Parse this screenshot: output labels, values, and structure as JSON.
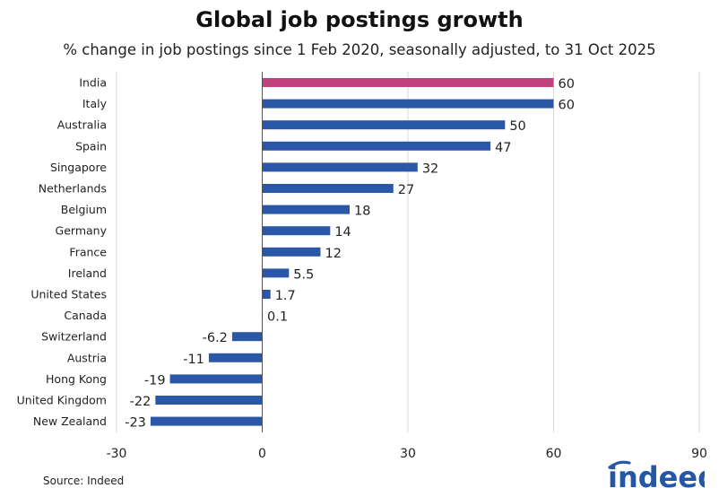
{
  "header": {
    "title": "Global job postings growth",
    "subtitle": "% change in job postings since 1 Feb 2020, seasonally adjusted, to 31 Oct 2025"
  },
  "footer": {
    "source": "Source: Indeed",
    "logo_text": "indeed"
  },
  "colors": {
    "bar": "#2a57a7",
    "highlight": "#c2407e",
    "grid": "#d9d9d9",
    "axis": "#555555",
    "brand": "#2557a7"
  },
  "chart_data": {
    "type": "bar",
    "orientation": "horizontal",
    "title": "Global job postings growth",
    "subtitle": "% change in job postings since 1 Feb 2020, seasonally adjusted, to 31 Oct 2025",
    "categories": [
      "India",
      "Italy",
      "Australia",
      "Spain",
      "Singapore",
      "Netherlands",
      "Belgium",
      "Germany",
      "France",
      "Ireland",
      "United States",
      "Canada",
      "Switzerland",
      "Austria",
      "Hong Kong",
      "United Kingdom",
      "New Zealand"
    ],
    "values": [
      60,
      60,
      50,
      47,
      32,
      27,
      18,
      14,
      12,
      5.5,
      1.7,
      0.1,
      -6.2,
      -11,
      -19,
      -22,
      -23
    ],
    "value_labels": [
      "60",
      "60",
      "50",
      "47",
      "32",
      "27",
      "18",
      "14",
      "12",
      "5.5",
      "1.7",
      "0.1",
      "-6.2",
      "-11",
      "-19",
      "-22",
      "-23"
    ],
    "highlight_category": "India",
    "xlim": [
      -30,
      90
    ],
    "xticks": [
      -30,
      0,
      30,
      60,
      90
    ],
    "grid": true
  }
}
